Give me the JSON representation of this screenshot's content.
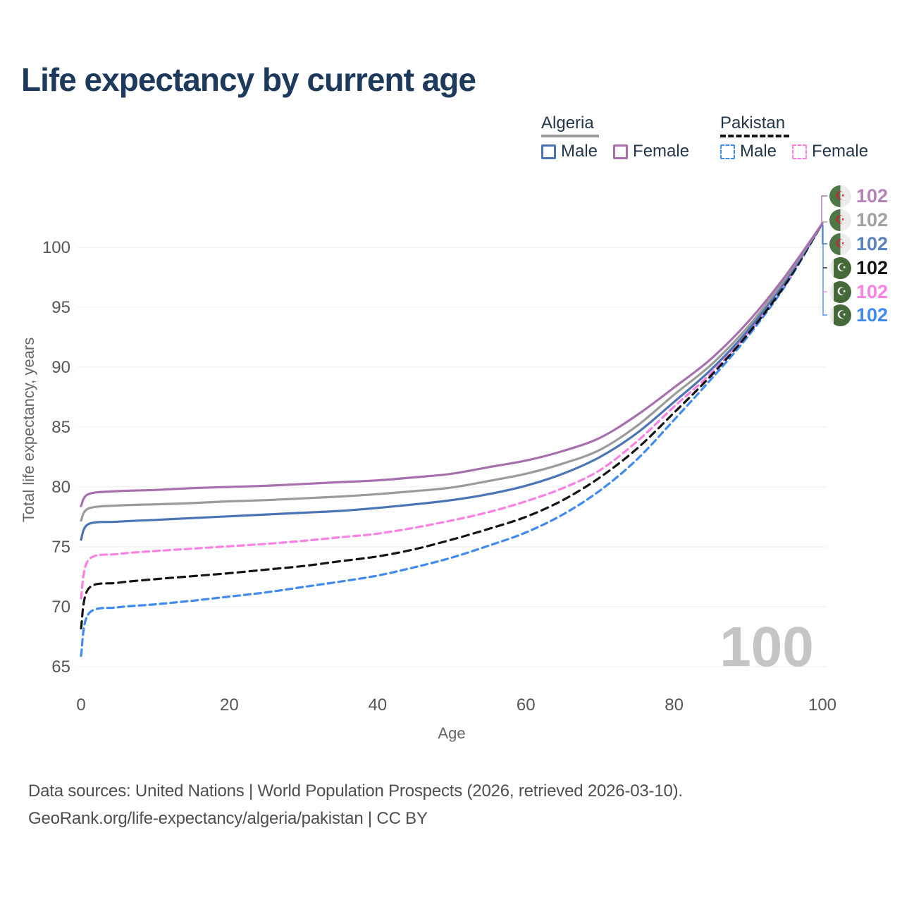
{
  "title": "Life expectancy by current age",
  "legend": {
    "groups": [
      {
        "label": "Algeria",
        "line_style": "solid",
        "underline_color": "#9b9b9b",
        "items": [
          {
            "label": "Male",
            "color": "#4a74b4",
            "dashed": false
          },
          {
            "label": "Female",
            "color": "#a76fae",
            "dashed": false
          }
        ]
      },
      {
        "label": "Pakistan",
        "line_style": "dashed",
        "underline_color": "#141414",
        "items": [
          {
            "label": "Male",
            "color": "#418bf0",
            "dashed": true
          },
          {
            "label": "Female",
            "color": "#fc81e2",
            "dashed": true
          }
        ]
      }
    ]
  },
  "chart_data": {
    "type": "line",
    "title": "Life expectancy by current age",
    "xlabel": "Age",
    "ylabel": "Total life expectancy, years",
    "xlim": [
      0,
      100
    ],
    "ylim": [
      64,
      104
    ],
    "x_ticks": [
      0,
      20,
      40,
      60,
      80,
      100
    ],
    "y_ticks": [
      65,
      70,
      75,
      80,
      85,
      90,
      95,
      100
    ],
    "grid": "horizontal",
    "legend_position": "top-right",
    "watermark_age": "100",
    "series": [
      {
        "name": "Pakistan Male",
        "country": "Pakistan",
        "sex": "Male",
        "color": "#418bf0",
        "dashed": true,
        "end_label": "102",
        "points": [
          [
            0,
            65.9
          ],
          [
            1,
            69.4
          ],
          [
            5,
            69.95
          ],
          [
            10,
            70.2
          ],
          [
            15,
            70.5
          ],
          [
            20,
            70.85
          ],
          [
            25,
            71.2
          ],
          [
            30,
            71.65
          ],
          [
            35,
            72.1
          ],
          [
            40,
            72.6
          ],
          [
            45,
            73.3
          ],
          [
            50,
            74.1
          ],
          [
            55,
            75.1
          ],
          [
            60,
            76.2
          ],
          [
            65,
            77.7
          ],
          [
            70,
            79.7
          ],
          [
            75,
            82.3
          ],
          [
            80,
            85.6
          ],
          [
            85,
            89.0
          ],
          [
            90,
            92.6
          ],
          [
            95,
            96.8
          ],
          [
            100,
            102
          ]
        ]
      },
      {
        "name": "Pakistan Female",
        "country": "Pakistan",
        "sex": "Female",
        "color": "#fc81e2",
        "dashed": true,
        "end_label": "102",
        "points": [
          [
            0,
            70.7
          ],
          [
            1,
            73.9
          ],
          [
            5,
            74.4
          ],
          [
            10,
            74.65
          ],
          [
            15,
            74.85
          ],
          [
            20,
            75.05
          ],
          [
            25,
            75.25
          ],
          [
            30,
            75.5
          ],
          [
            35,
            75.8
          ],
          [
            40,
            76.1
          ],
          [
            45,
            76.6
          ],
          [
            50,
            77.2
          ],
          [
            55,
            77.9
          ],
          [
            60,
            78.8
          ],
          [
            65,
            79.9
          ],
          [
            70,
            81.4
          ],
          [
            75,
            83.8
          ],
          [
            80,
            86.7
          ],
          [
            85,
            89.5
          ],
          [
            90,
            92.9
          ],
          [
            95,
            97.0
          ],
          [
            100,
            102
          ]
        ]
      },
      {
        "name": "Pakistan",
        "country": "Pakistan",
        "sex": "Both",
        "color": "#141414",
        "dashed": true,
        "end_label": "102",
        "points": [
          [
            0,
            68.2
          ],
          [
            1,
            71.5
          ],
          [
            5,
            72.0
          ],
          [
            10,
            72.3
          ],
          [
            15,
            72.55
          ],
          [
            20,
            72.8
          ],
          [
            25,
            73.1
          ],
          [
            30,
            73.4
          ],
          [
            35,
            73.8
          ],
          [
            40,
            74.2
          ],
          [
            45,
            74.8
          ],
          [
            50,
            75.6
          ],
          [
            55,
            76.5
          ],
          [
            60,
            77.5
          ],
          [
            65,
            78.9
          ],
          [
            70,
            80.8
          ],
          [
            75,
            83.2
          ],
          [
            80,
            86.2
          ],
          [
            85,
            89.3
          ],
          [
            90,
            92.8
          ],
          [
            95,
            96.9
          ],
          [
            100,
            102
          ]
        ]
      },
      {
        "name": "Algeria Male",
        "country": "Algeria",
        "sex": "Male",
        "color": "#4a74b4",
        "dashed": false,
        "end_label": "102",
        "points": [
          [
            0,
            75.6
          ],
          [
            1,
            76.9
          ],
          [
            5,
            77.1
          ],
          [
            10,
            77.25
          ],
          [
            15,
            77.4
          ],
          [
            20,
            77.55
          ],
          [
            25,
            77.7
          ],
          [
            30,
            77.85
          ],
          [
            35,
            78.0
          ],
          [
            40,
            78.25
          ],
          [
            45,
            78.55
          ],
          [
            50,
            78.9
          ],
          [
            55,
            79.4
          ],
          [
            60,
            80.1
          ],
          [
            65,
            81.1
          ],
          [
            70,
            82.5
          ],
          [
            75,
            84.5
          ],
          [
            80,
            87.1
          ],
          [
            85,
            89.8
          ],
          [
            90,
            93.1
          ],
          [
            95,
            97.2
          ],
          [
            100,
            102
          ]
        ]
      },
      {
        "name": "Algeria",
        "country": "Algeria",
        "sex": "Both",
        "color": "#9b9b9b",
        "dashed": false,
        "end_label": "102",
        "points": [
          [
            0,
            77.2
          ],
          [
            1,
            78.2
          ],
          [
            5,
            78.45
          ],
          [
            10,
            78.55
          ],
          [
            15,
            78.65
          ],
          [
            20,
            78.8
          ],
          [
            25,
            78.9
          ],
          [
            30,
            79.05
          ],
          [
            35,
            79.2
          ],
          [
            40,
            79.4
          ],
          [
            45,
            79.65
          ],
          [
            50,
            79.95
          ],
          [
            55,
            80.5
          ],
          [
            60,
            81.1
          ],
          [
            65,
            81.95
          ],
          [
            70,
            83.1
          ],
          [
            75,
            85.1
          ],
          [
            80,
            87.7
          ],
          [
            85,
            90.2
          ],
          [
            90,
            93.4
          ],
          [
            95,
            97.4
          ],
          [
            100,
            102
          ]
        ]
      },
      {
        "name": "Algeria Female",
        "country": "Algeria",
        "sex": "Female",
        "color": "#a76fae",
        "dashed": false,
        "end_label": "102",
        "points": [
          [
            0,
            78.4
          ],
          [
            1,
            79.4
          ],
          [
            5,
            79.65
          ],
          [
            10,
            79.75
          ],
          [
            15,
            79.9
          ],
          [
            20,
            80.0
          ],
          [
            25,
            80.1
          ],
          [
            30,
            80.25
          ],
          [
            35,
            80.4
          ],
          [
            40,
            80.55
          ],
          [
            45,
            80.8
          ],
          [
            50,
            81.1
          ],
          [
            55,
            81.65
          ],
          [
            60,
            82.2
          ],
          [
            65,
            83.0
          ],
          [
            70,
            84.1
          ],
          [
            75,
            86.0
          ],
          [
            80,
            88.3
          ],
          [
            85,
            90.7
          ],
          [
            90,
            93.8
          ],
          [
            95,
            97.6
          ],
          [
            100,
            102
          ]
        ]
      }
    ]
  },
  "right_labels": [
    {
      "value": "102",
      "series": "Algeria Female",
      "flag": "algeria",
      "color": "#b583b8"
    },
    {
      "value": "102",
      "series": "Algeria",
      "flag": "algeria",
      "color": "#a0a0a0"
    },
    {
      "value": "102",
      "series": "Algeria Male",
      "flag": "algeria",
      "color": "#5b82c0"
    },
    {
      "value": "102",
      "series": "Pakistan",
      "flag": "pakistan",
      "color": "#141414"
    },
    {
      "value": "102",
      "series": "Pakistan Female",
      "flag": "pakistan",
      "color": "#fc81e2"
    },
    {
      "value": "102",
      "series": "Pakistan Male",
      "flag": "pakistan",
      "color": "#418bf0"
    }
  ],
  "watermark": "100",
  "footer": {
    "line1": "Data sources: United Nations | World Population Prospects (2026, retrieved 2026-03-10).",
    "line2": "GeoRank.org/life-expectancy/algeria/pakistan | CC BY"
  }
}
